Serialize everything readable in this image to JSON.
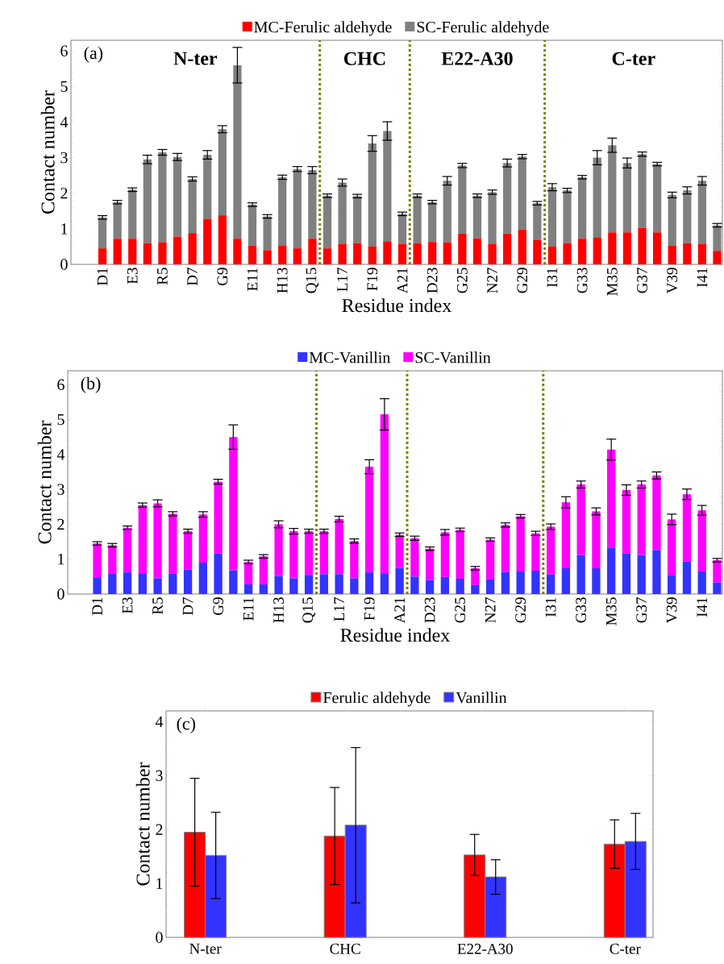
{
  "chart_data": [
    {
      "type": "bar",
      "stacked": true,
      "xlabel": "Residue index",
      "ylabel": "Contact number",
      "legend": "top",
      "categories": [
        "D1",
        null,
        "E3",
        null,
        "R5",
        null,
        "D7",
        null,
        "G9",
        null,
        "E11",
        null,
        "H13",
        null,
        "Q15",
        null,
        "L17",
        null,
        "F19",
        null,
        "A21",
        null,
        "D23",
        null,
        "G25",
        null,
        "N27",
        null,
        "G29",
        null,
        "I31",
        null,
        "G33",
        null,
        "M35",
        null,
        "G37",
        null,
        "V39",
        null,
        "I41",
        null
      ],
      "series": [
        {
          "name": "MC-Ferulic aldehyde",
          "color": "#ff0000",
          "values": [
            0.45,
            0.72,
            0.72,
            0.6,
            0.62,
            0.78,
            0.88,
            1.28,
            1.38,
            0.72,
            0.52,
            0.4,
            0.52,
            0.45,
            0.72,
            0.45,
            0.58,
            0.6,
            0.5,
            0.65,
            0.58,
            0.6,
            0.63,
            0.62,
            0.87,
            0.73,
            0.58,
            0.87,
            0.98,
            0.68,
            0.5,
            0.6,
            0.72,
            0.75,
            0.9,
            0.9,
            1.03,
            0.9,
            0.52,
            0.6,
            0.58,
            0.38
          ]
        },
        {
          "name": "SC-Ferulic aldehyde",
          "color": "#808080",
          "values": [
            0.87,
            1.03,
            1.38,
            2.35,
            2.53,
            2.24,
            1.52,
            1.8,
            2.42,
            4.88,
            1.16,
            0.95,
            1.93,
            2.23,
            1.93,
            1.48,
            1.72,
            1.32,
            2.9,
            3.1,
            0.84,
            1.33,
            1.12,
            1.73,
            1.91,
            1.2,
            1.45,
            1.98,
            2.05,
            1.04,
            1.67,
            1.48,
            1.73,
            2.25,
            2.45,
            1.95,
            2.07,
            1.92,
            1.43,
            1.48,
            1.77,
            0.72
          ],
          "errors": [
            0.05,
            0.05,
            0.05,
            0.12,
            0.08,
            0.1,
            0.06,
            0.12,
            0.1,
            0.5,
            0.05,
            0.05,
            0.06,
            0.07,
            0.1,
            0.05,
            0.1,
            0.05,
            0.22,
            0.26,
            0.05,
            0.05,
            0.05,
            0.12,
            0.06,
            0.05,
            0.06,
            0.11,
            0.06,
            0.05,
            0.1,
            0.06,
            0.05,
            0.2,
            0.2,
            0.14,
            0.06,
            0.05,
            0.08,
            0.1,
            0.12,
            0.05
          ]
        }
      ],
      "ylim": [
        0,
        6.3
      ],
      "yticks": [
        0,
        1,
        2,
        3,
        4,
        5,
        6
      ],
      "annotations": [
        "(a)",
        "N-ter",
        "CHC",
        "E22-A30",
        "C-ter"
      ]
    },
    {
      "type": "bar",
      "stacked": true,
      "xlabel": "Residue index",
      "ylabel": "Contact number",
      "legend": "top",
      "categories": [
        "D1",
        null,
        "E3",
        null,
        "R5",
        null,
        "D7",
        null,
        "G9",
        null,
        "E11",
        null,
        "H13",
        null,
        "Q15",
        null,
        "L17",
        null,
        "F19",
        null,
        "A21",
        null,
        "D23",
        null,
        "G25",
        null,
        "N27",
        null,
        "G29",
        null,
        "I31",
        null,
        "G33",
        null,
        "M35",
        null,
        "G37",
        null,
        "V39",
        null,
        "I41",
        null
      ],
      "series": [
        {
          "name": "MC-Vanillin",
          "color": "#3333ff",
          "values": [
            0.48,
            0.58,
            0.62,
            0.58,
            0.45,
            0.58,
            0.7,
            0.9,
            1.17,
            0.68,
            0.28,
            0.28,
            0.52,
            0.45,
            0.55,
            0.57,
            0.57,
            0.45,
            0.62,
            0.58,
            0.75,
            0.5,
            0.4,
            0.49,
            0.44,
            0.26,
            0.42,
            0.63,
            0.65,
            0.67,
            0.56,
            0.74,
            1.12,
            0.74,
            1.33,
            1.16,
            1.12,
            1.26,
            0.53,
            0.93,
            0.65,
            0.33
          ]
        },
        {
          "name": "SC-Vanillin",
          "color": "#ff00ff",
          "values": [
            0.97,
            0.82,
            1.28,
            1.97,
            2.15,
            1.72,
            1.1,
            1.38,
            2.05,
            3.82,
            0.64,
            0.8,
            1.48,
            1.35,
            1.25,
            1.23,
            1.58,
            1.07,
            3.03,
            4.57,
            0.95,
            1.1,
            0.9,
            1.28,
            1.4,
            0.48,
            1.14,
            1.35,
            1.58,
            1.07,
            1.37,
            1.89,
            2.02,
            1.63,
            2.81,
            1.82,
            2.02,
            2.14,
            1.61,
            1.93,
            1.75,
            0.64
          ],
          "errors": [
            0.05,
            0.05,
            0.05,
            0.06,
            0.1,
            0.06,
            0.06,
            0.08,
            0.07,
            0.35,
            0.05,
            0.05,
            0.1,
            0.08,
            0.06,
            0.06,
            0.08,
            0.06,
            0.2,
            0.45,
            0.05,
            0.06,
            0.05,
            0.08,
            0.05,
            0.05,
            0.05,
            0.06,
            0.05,
            0.06,
            0.08,
            0.16,
            0.1,
            0.1,
            0.3,
            0.15,
            0.1,
            0.1,
            0.15,
            0.15,
            0.14,
            0.05
          ]
        }
      ],
      "ylim": [
        0,
        6.4
      ],
      "yticks": [
        0,
        1,
        2,
        3,
        4,
        5,
        6
      ],
      "annotations": [
        "(b)"
      ]
    },
    {
      "type": "bar",
      "ylabel": "Contact number",
      "legend": "top",
      "categories": [
        "N-ter",
        "CHC",
        "E22-A30",
        "C-ter"
      ],
      "series": [
        {
          "name": "Ferulic aldehyde",
          "color": "#ff0000",
          "values": [
            1.95,
            1.88,
            1.53,
            1.73
          ],
          "errors": [
            1.0,
            0.9,
            0.38,
            0.45
          ]
        },
        {
          "name": "Vanillin",
          "color": "#3333ff",
          "values": [
            1.52,
            2.08,
            1.12,
            1.78
          ],
          "errors": [
            0.8,
            1.44,
            0.32,
            0.52
          ]
        }
      ],
      "ylim": [
        0,
        4.2
      ],
      "yticks": [
        0,
        1,
        2,
        3,
        4
      ],
      "annotations": [
        "(c)"
      ]
    }
  ]
}
